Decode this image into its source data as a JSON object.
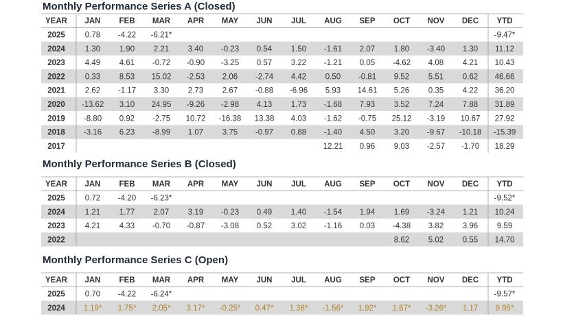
{
  "tables": [
    {
      "title": "Monthly Performance Series A (Closed)",
      "header": [
        "YEAR",
        "JAN",
        "FEB",
        "MAR",
        "APR",
        "MAY",
        "JUN",
        "JUL",
        "AUG",
        "SEP",
        "OCT",
        "NOV",
        "DEC",
        "YTD"
      ],
      "rows": [
        {
          "cells": [
            "2025",
            "0.78",
            "-4.22",
            "-6.21*",
            null,
            null,
            null,
            null,
            null,
            null,
            null,
            null,
            null,
            "-9.47*"
          ]
        },
        {
          "cells": [
            "2024",
            "1.30",
            "1.90",
            "2.21",
            "3.40",
            "-0.23",
            "0.54",
            "1.50",
            "-1.61",
            "2.07",
            "1.80",
            "-3.40",
            "1.30",
            "11.12"
          ]
        },
        {
          "cells": [
            "2023",
            "4.49",
            "4.61",
            "-0.72",
            "-0.90",
            "-3.25",
            "0.57",
            "3.22",
            "-1.21",
            "0.05",
            "-4.62",
            "4.08",
            "4.21",
            "10.43"
          ]
        },
        {
          "cells": [
            "2022",
            "0.33",
            "8.53",
            "15.02",
            "-2.53",
            "2.06",
            "-2.74",
            "4.42",
            "0.50",
            "-0.81",
            "9.52",
            "5.51",
            "0.62",
            "46.66"
          ]
        },
        {
          "cells": [
            "2021",
            "2.62",
            "-1.17",
            "3.30",
            "2.73",
            "2.67",
            "-0.88",
            "-6.96",
            "5.93",
            "14.61",
            "5.26",
            "0.35",
            "4.22",
            "36.20"
          ]
        },
        {
          "cells": [
            "2020",
            "-13.62",
            "3.10",
            "24.95",
            "-9.26",
            "-2.98",
            "4.13",
            "1.73",
            "-1.68",
            "7.93",
            "3.52",
            "7.24",
            "7.88",
            "31.89"
          ]
        },
        {
          "cells": [
            "2019",
            "-8.80",
            "0.92",
            "-2.75",
            "10.72",
            "-16.38",
            "13.38",
            "4.03",
            "-1.62",
            "-0.75",
            "25.12",
            "-3.19",
            "10.67",
            "27.92"
          ]
        },
        {
          "cells": [
            "2018",
            "-3.16",
            "6.23",
            "-8.99",
            "1.07",
            "3.75",
            "-0.97",
            "0.88",
            "-1.40",
            "4.50",
            "3.20",
            "-9.67",
            "-10.18",
            "-15.39"
          ]
        },
        {
          "cells": [
            "2017",
            null,
            null,
            null,
            null,
            null,
            null,
            null,
            "12.21",
            "0.96",
            "9.03",
            "-2.57",
            "-1.70",
            "18.29"
          ]
        }
      ]
    },
    {
      "title": "Monthly Performance Series B (Closed)",
      "header": [
        "YEAR",
        "JAN",
        "FEB",
        "MAR",
        "APR",
        "MAY",
        "JUN",
        "JUL",
        "AUG",
        "SEP",
        "OCT",
        "NOV",
        "DEC",
        "YTD"
      ],
      "rows": [
        {
          "cells": [
            "2025",
            "0.72",
            "-4.20",
            "-6.23*",
            null,
            null,
            null,
            null,
            null,
            null,
            null,
            null,
            null,
            "-9.52*"
          ]
        },
        {
          "cells": [
            "2024",
            "1.21",
            "1.77",
            "2.07",
            "3.19",
            "-0.23",
            "0.49",
            "1.40",
            "-1.54",
            "1.94",
            "1.69",
            "-3.24",
            "1.21",
            "10.24"
          ]
        },
        {
          "cells": [
            "2023",
            "4.21",
            "4.33",
            "-0.70",
            "-0.87",
            "-3.08",
            "0.52",
            "3.02",
            "-1.16",
            "0.03",
            "-4.38",
            "3.82",
            "3.96",
            "9.59"
          ]
        },
        {
          "cells": [
            "2022",
            null,
            null,
            null,
            null,
            null,
            null,
            null,
            null,
            null,
            "8.62",
            "5.02",
            "0.55",
            "14.70"
          ]
        }
      ]
    },
    {
      "title": "Monthly Performance Series C (Open)",
      "header": [
        "YEAR",
        "JAN",
        "FEB",
        "MAR",
        "APR",
        "MAY",
        "JUN",
        "JUL",
        "AUG",
        "SEP",
        "OCT",
        "NOV",
        "DEC",
        "YTD"
      ],
      "rows": [
        {
          "cells": [
            "2025",
            "0.70",
            "-4.22",
            "-6.24*",
            null,
            null,
            null,
            null,
            null,
            null,
            null,
            null,
            null,
            "-9.57*"
          ]
        },
        {
          "cells": [
            "2024",
            "1.19*",
            "1.75*",
            "2.05*",
            "3.17*",
            "-0.25*",
            "0.47*",
            "1.38*",
            "-1.56*",
            "1.92*",
            "1.67*",
            "-3.26*",
            "1.17",
            "9.95*"
          ],
          "color": "#b3852a"
        }
      ]
    }
  ]
}
